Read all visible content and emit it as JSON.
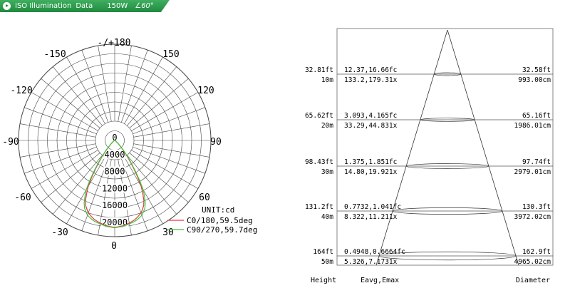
{
  "header": {
    "product_label": "ISO Illumination",
    "section_label": "Data",
    "power": "150W",
    "beam_angle": "60°"
  },
  "chart_data": [
    {
      "type": "polar",
      "name": "luminous-intensity-distribution",
      "angle_labels": {
        "top": "-/+180",
        "upper_left": "-150",
        "upper_right": "150",
        "left_upper": "-120",
        "right_upper": "120",
        "left": "-90",
        "right": "90",
        "left_lower": "-60",
        "right_lower": "60",
        "lower_left": "-30",
        "lower_right": "30",
        "bottom": "0"
      },
      "radial_ticks": [
        "0",
        "4000",
        "8000",
        "12000",
        "16000",
        "20000"
      ],
      "radial_max": 20000,
      "unit_label": "UNIT:cd",
      "series": [
        {
          "name": "C0/180,59.5deg",
          "color": "#e03a3a",
          "points": [
            [
              0,
              20500
            ],
            [
              5,
              20300
            ],
            [
              10,
              19800
            ],
            [
              15,
              19200
            ],
            [
              20,
              18200
            ],
            [
              25,
              16500
            ],
            [
              30,
              12500
            ],
            [
              35,
              7000
            ],
            [
              40,
              3500
            ],
            [
              45,
              1500
            ],
            [
              50,
              600
            ],
            [
              60,
              250
            ],
            [
              80,
              80
            ],
            [
              180,
              0
            ]
          ]
        },
        {
          "name": "C90/270,59.7deg",
          "color": "#3ec43e",
          "points": [
            [
              0,
              20600
            ],
            [
              5,
              20400
            ],
            [
              10,
              20000
            ],
            [
              15,
              19600
            ],
            [
              20,
              18800
            ],
            [
              25,
              17200
            ],
            [
              30,
              13500
            ],
            [
              35,
              7500
            ],
            [
              40,
              3800
            ],
            [
              45,
              1700
            ],
            [
              50,
              700
            ],
            [
              60,
              300
            ],
            [
              80,
              100
            ],
            [
              180,
              0
            ]
          ]
        }
      ]
    },
    {
      "type": "table",
      "name": "illuminance-cone",
      "columns": [
        "Height",
        "Eavg,Emax",
        "Diameter"
      ],
      "rows": [
        {
          "height_ft": "32.81ft",
          "height_m": "10m",
          "e_fc": "12.37,16.66fc",
          "e_lx": "133.2,179.31x",
          "dia_ft": "32.58ft",
          "dia_cm": "993.00cm"
        },
        {
          "height_ft": "65.62ft",
          "height_m": "20m",
          "e_fc": "3.093,4.165fc",
          "e_lx": "33.29,44.831x",
          "dia_ft": "65.16ft",
          "dia_cm": "1986.01cm"
        },
        {
          "height_ft": "98.43ft",
          "height_m": "30m",
          "e_fc": "1.375,1.851fc",
          "e_lx": "14.80,19.921x",
          "dia_ft": "97.74ft",
          "dia_cm": "2979.01cm"
        },
        {
          "height_ft": "131.2ft",
          "height_m": "40m",
          "e_fc": "0.7732,1.041fc",
          "e_lx": "8.322,11.211x",
          "dia_ft": "130.3ft",
          "dia_cm": "3972.02cm"
        },
        {
          "height_ft": "164ft",
          "height_m": "50m",
          "e_fc": "0.4948,0.6664fc",
          "e_lx": "5.326,7.1731x",
          "dia_ft": "162.9ft",
          "dia_cm": "4965.02cm"
        }
      ]
    }
  ]
}
